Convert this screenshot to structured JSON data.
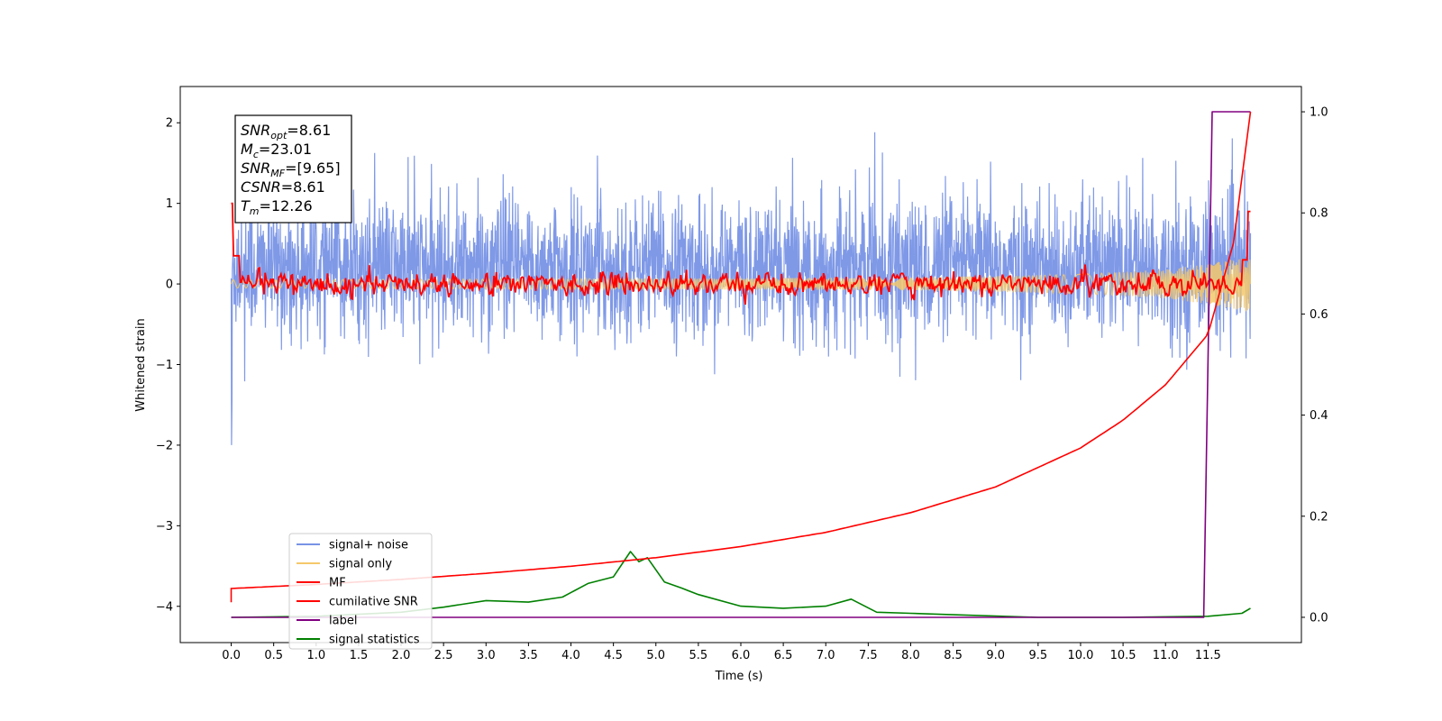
{
  "chart_data": {
    "type": "line",
    "xlabel": "Time (s)",
    "ylabel": "Whitened strain",
    "xlim": [
      -0.6,
      12.6
    ],
    "ylim": [
      -4.45,
      2.45
    ],
    "y2lim": [
      -0.05,
      1.05
    ],
    "x_ticks": [
      "0.0",
      "0.5",
      "1.0",
      "1.5",
      "2.0",
      "2.5",
      "3.0",
      "3.5",
      "4.0",
      "4.5",
      "5.0",
      "5.5",
      "6.0",
      "6.5",
      "7.0",
      "7.5",
      "8.0",
      "8.5",
      "9.0",
      "9.5",
      "10.0",
      "10.5",
      "11.0",
      "11.5"
    ],
    "y_ticks": [
      "2",
      "1",
      "0",
      "−1",
      "−2",
      "−3",
      "−4"
    ],
    "y2_ticks": [
      "1.0",
      "0.8",
      "0.6",
      "0.4",
      "0.2",
      "0.0"
    ],
    "legend_position": "lower-left",
    "annotation": {
      "lines": [
        {
          "sym": "SNR",
          "sub": "opt",
          "val": "=8.61"
        },
        {
          "sym": "M",
          "sub": "c",
          "val": "=23.01"
        },
        {
          "sym": "SNR",
          "sub": "MF",
          "val": "=[9.65]"
        },
        {
          "sym": "CSNR",
          "sub": "",
          "val": "=8.61"
        },
        {
          "sym": "T",
          "sub": "m",
          "val": "=12.26"
        }
      ]
    },
    "series": [
      {
        "name": "signal+ noise",
        "color": "#7893e6",
        "axis": "left",
        "description": "noisy whitened strain, approx. range -1.9 to 2.1, mostly within -1.1 to 1.5"
      },
      {
        "name": "signal only",
        "color": "#f5c86b",
        "axis": "left",
        "description": "chirp with amplitude rising toward end",
        "envelope": [
          [
            0.0,
            0.05
          ],
          [
            8.0,
            0.08
          ],
          [
            10.0,
            0.12
          ],
          [
            11.0,
            0.18
          ],
          [
            11.5,
            0.25
          ],
          [
            12.0,
            0.35
          ]
        ]
      },
      {
        "name": "MF",
        "color": "#ff0000",
        "axis": "left",
        "start_value": 1.0,
        "end_value": 0.9,
        "baseline": 0.0
      },
      {
        "name": "cumilative SNR",
        "color": "#ff0000",
        "axis": "right",
        "points": [
          [
            0.0,
            0.057
          ],
          [
            1.0,
            0.065
          ],
          [
            2.0,
            0.075
          ],
          [
            3.0,
            0.087
          ],
          [
            4.0,
            0.101
          ],
          [
            5.0,
            0.118
          ],
          [
            6.0,
            0.14
          ],
          [
            7.0,
            0.168
          ],
          [
            8.0,
            0.207
          ],
          [
            9.0,
            0.258
          ],
          [
            10.0,
            0.335
          ],
          [
            10.5,
            0.39
          ],
          [
            11.0,
            0.46
          ],
          [
            11.5,
            0.56
          ],
          [
            11.8,
            0.74
          ],
          [
            12.0,
            1.0
          ]
        ]
      },
      {
        "name": "label",
        "color": "#800080",
        "axis": "right",
        "points": [
          [
            0.0,
            0.0
          ],
          [
            11.45,
            0.0
          ],
          [
            11.55,
            1.0
          ],
          [
            12.0,
            1.0
          ]
        ]
      },
      {
        "name": "signal statistics",
        "color": "#008000",
        "axis": "right",
        "points": [
          [
            0.0,
            0.0
          ],
          [
            1.0,
            0.002
          ],
          [
            2.0,
            0.01
          ],
          [
            2.5,
            0.02
          ],
          [
            3.0,
            0.033
          ],
          [
            3.5,
            0.03
          ],
          [
            3.9,
            0.04
          ],
          [
            4.2,
            0.067
          ],
          [
            4.5,
            0.08
          ],
          [
            4.7,
            0.13
          ],
          [
            4.8,
            0.11
          ],
          [
            4.9,
            0.118
          ],
          [
            5.1,
            0.07
          ],
          [
            5.3,
            0.058
          ],
          [
            5.5,
            0.045
          ],
          [
            6.0,
            0.022
          ],
          [
            6.5,
            0.018
          ],
          [
            7.0,
            0.022
          ],
          [
            7.3,
            0.036
          ],
          [
            7.6,
            0.01
          ],
          [
            8.0,
            0.008
          ],
          [
            8.5,
            0.005
          ],
          [
            9.5,
            0.0
          ],
          [
            10.5,
            0.0
          ],
          [
            11.5,
            0.002
          ],
          [
            11.9,
            0.008
          ],
          [
            12.0,
            0.018
          ]
        ]
      }
    ]
  }
}
